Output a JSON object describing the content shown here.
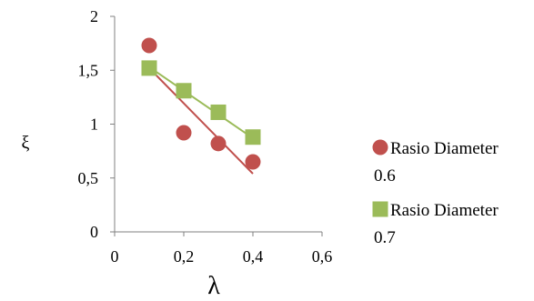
{
  "chart_data": {
    "type": "scatter",
    "xlabel": "λ",
    "ylabel": "ξ",
    "xlim": [
      0,
      0.6
    ],
    "ylim": [
      0,
      2
    ],
    "x_ticks": [
      0,
      0.2,
      0.4,
      0.6
    ],
    "y_ticks": [
      0,
      0.5,
      1,
      1.5,
      2
    ],
    "x_tick_labels": [
      "0",
      "0,2",
      "0,4",
      "0,6"
    ],
    "y_tick_labels": [
      "0",
      "0,5",
      "1",
      "1,5",
      "2"
    ],
    "grid": false,
    "legend_position": "right",
    "series": [
      {
        "name": "Rasio Diameter 0.6",
        "legend_lines": [
          "Rasio Diameter",
          "0.6"
        ],
        "marker": "circle",
        "color": "#C0504D",
        "x": [
          0.1,
          0.2,
          0.3,
          0.4
        ],
        "y": [
          1.73,
          0.92,
          0.82,
          0.65
        ],
        "trendline": {
          "type": "linear",
          "from": [
            0.1,
            1.52
          ],
          "to": [
            0.4,
            0.54
          ]
        }
      },
      {
        "name": "Rasio Diameter 0.7",
        "legend_lines": [
          "Rasio Diameter",
          "0.7"
        ],
        "marker": "square",
        "color": "#9BBB59",
        "x": [
          0.1,
          0.2,
          0.3,
          0.4
        ],
        "y": [
          1.52,
          1.31,
          1.11,
          0.88
        ],
        "trendline": {
          "type": "linear",
          "from": [
            0.1,
            1.53
          ],
          "to": [
            0.4,
            0.87
          ]
        }
      }
    ]
  }
}
